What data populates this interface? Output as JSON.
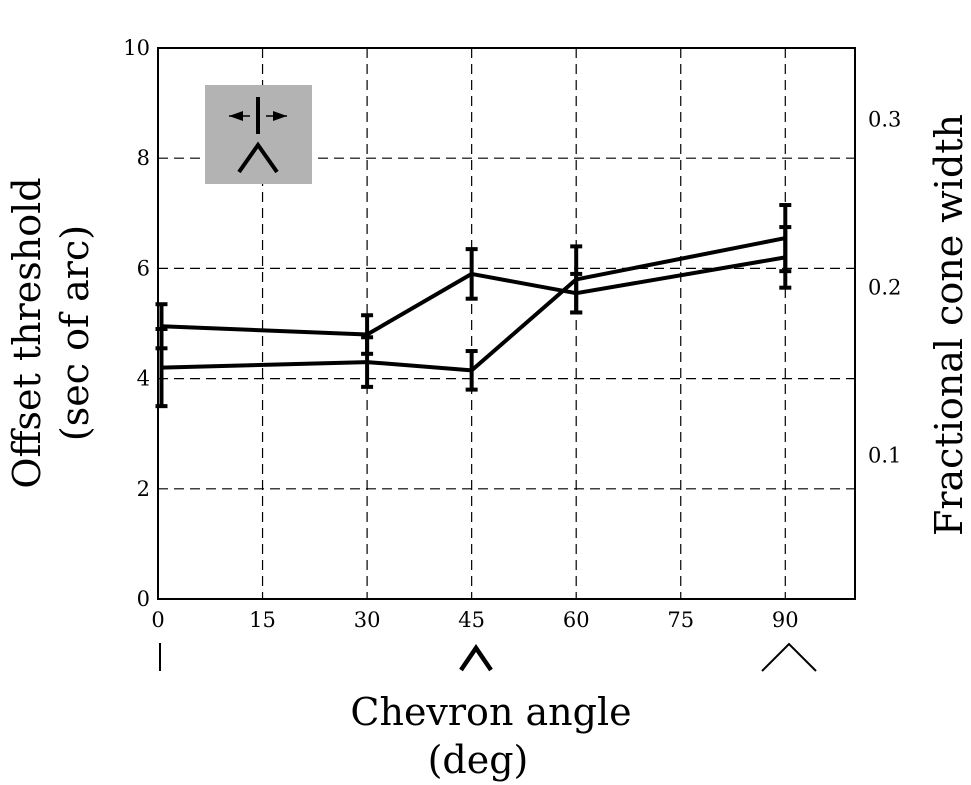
{
  "chart_data": {
    "type": "line",
    "xlabel_lines": [
      "Chevron angle",
      "(deg)"
    ],
    "ylabel_lines": [
      "Offset threshold",
      "(sec of arc)"
    ],
    "y2label": "Fractional cone width",
    "xlim": [
      0,
      100
    ],
    "ylim": [
      0,
      10
    ],
    "y2lim": [
      0.014,
      0.342
    ],
    "grid": true,
    "x_ticks": [
      {
        "value": 0,
        "label": "0"
      },
      {
        "value": 15,
        "label": "15"
      },
      {
        "value": 30,
        "label": "30"
      },
      {
        "value": 45,
        "label": "45"
      },
      {
        "value": 60,
        "label": "60"
      },
      {
        "value": 75,
        "label": "75"
      },
      {
        "value": 90,
        "label": "90"
      }
    ],
    "y_ticks": [
      {
        "value": 0,
        "label": "0"
      },
      {
        "value": 2,
        "label": "2"
      },
      {
        "value": 4,
        "label": "4"
      },
      {
        "value": 6,
        "label": "6"
      },
      {
        "value": 8,
        "label": "8"
      },
      {
        "value": 10,
        "label": "10"
      }
    ],
    "y2_ticks": [
      {
        "value": 0.1,
        "label": "0.1"
      },
      {
        "value": 0.2,
        "label": "0.2"
      },
      {
        "value": 0.3,
        "label": "0.3"
      }
    ],
    "series": [
      {
        "x": [
          0.5,
          30,
          45,
          60,
          90
        ],
        "y": [
          4.95,
          4.8,
          5.9,
          5.55,
          6.2
        ],
        "err": [
          0.4,
          0.35,
          0.45,
          0.35,
          0.55
        ]
      },
      {
        "x": [
          0.5,
          30,
          45,
          60,
          90
        ],
        "y": [
          4.2,
          4.3,
          4.15,
          5.8,
          6.55
        ],
        "err": [
          0.7,
          0.45,
          0.35,
          0.6,
          0.6
        ]
      }
    ],
    "angle_icons": [
      {
        "angle": 0,
        "name": "vertical-line"
      },
      {
        "angle": 45,
        "name": "chevron-45"
      },
      {
        "angle": 90,
        "name": "chevron-90"
      }
    ],
    "inset": {
      "color": "#b3b3b3",
      "icon": "offset-chevron-stimulus"
    }
  }
}
